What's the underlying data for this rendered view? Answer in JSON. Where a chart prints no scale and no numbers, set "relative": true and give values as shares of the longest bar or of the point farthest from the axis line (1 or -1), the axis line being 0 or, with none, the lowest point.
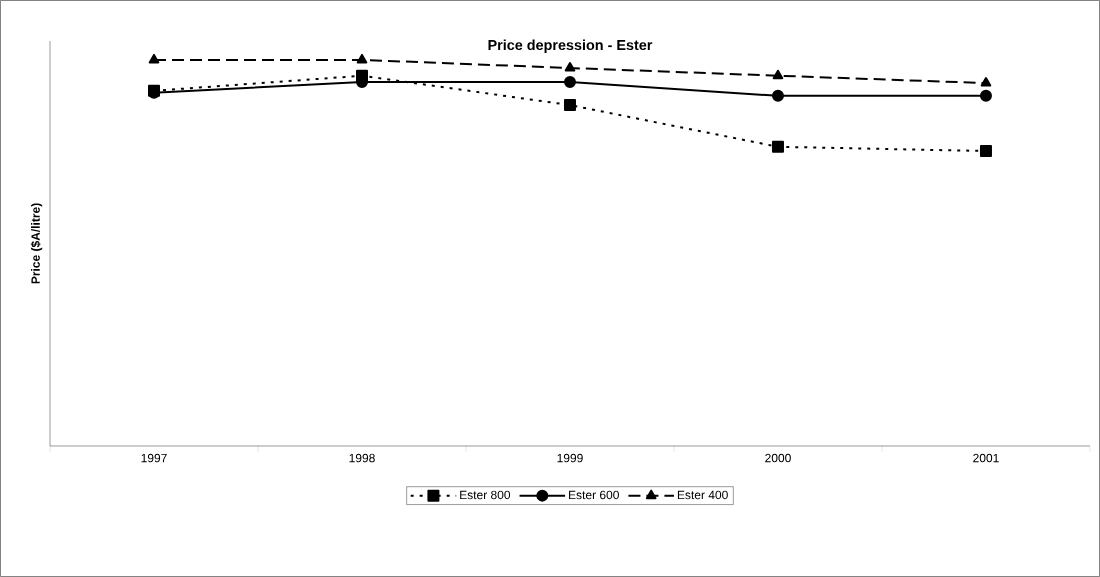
{
  "chart_data": {
    "type": "line",
    "title": "Price depression - Ester",
    "ylabel": "Price ($A/litre)",
    "relative": true,
    "categories": [
      "1997",
      "1998",
      "1999",
      "2000",
      "2001"
    ],
    "series": [
      {
        "name": "Ester 800",
        "color": "#000000",
        "marker": "square",
        "line_style": "dotted",
        "values": [
          0.92,
          0.959,
          0.883,
          0.775,
          0.764
        ]
      },
      {
        "name": "Ester 600",
        "color": "#000000",
        "marker": "circle",
        "line_style": "solid",
        "values": [
          0.915,
          0.943,
          0.943,
          0.907,
          0.907
        ]
      },
      {
        "name": "Ester 400",
        "color": "#000000",
        "marker": "triangle",
        "line_style": "dashed",
        "values": [
          1,
          1,
          0.979,
          0.959,
          0.94
        ]
      }
    ],
    "legend": "bottom"
  }
}
